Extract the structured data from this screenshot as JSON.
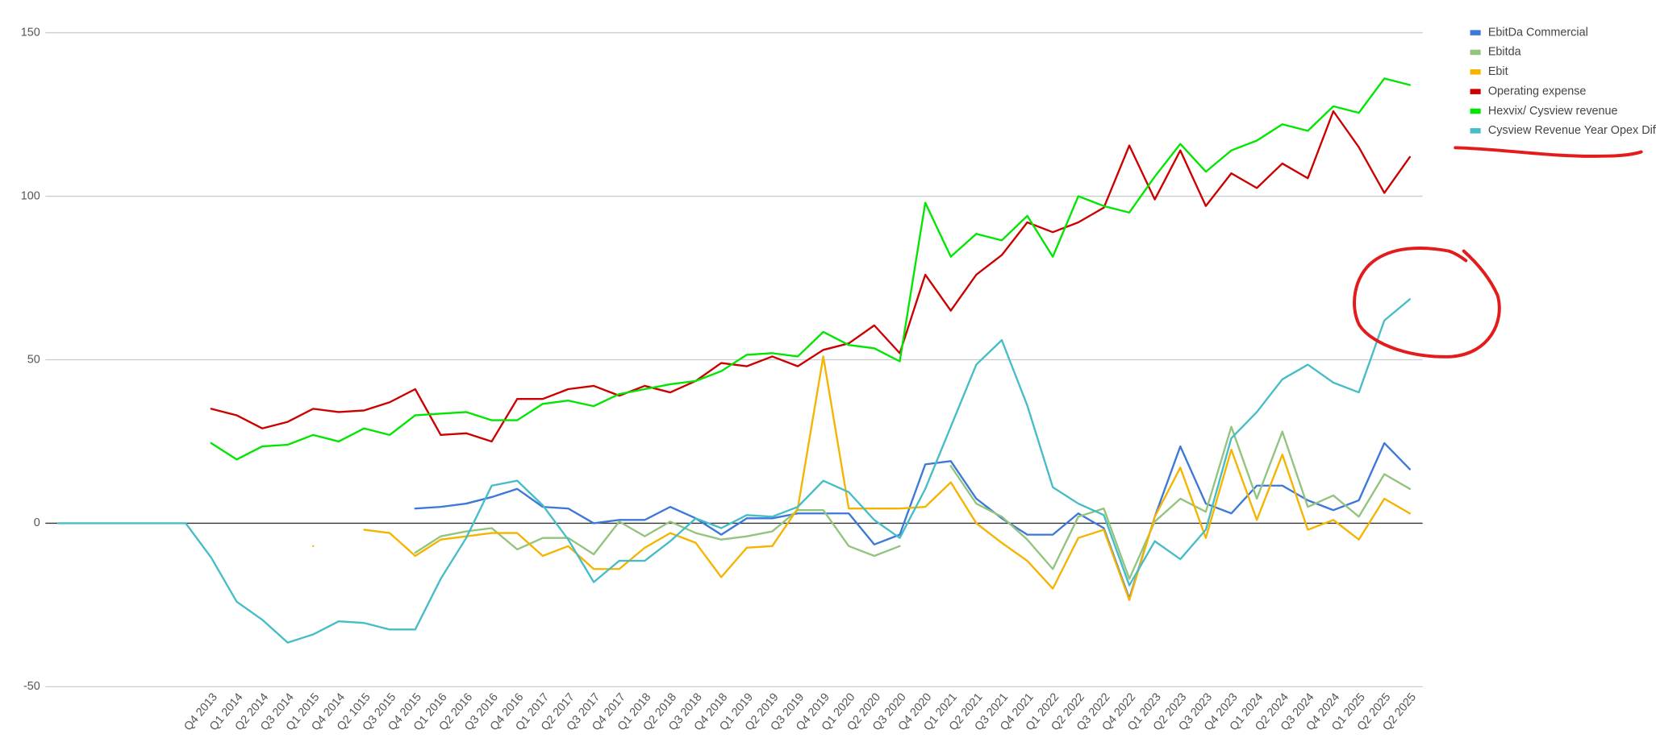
{
  "chart_data": {
    "type": "line",
    "categories": [
      null,
      null,
      null,
      null,
      null,
      null,
      "Q4 2013",
      "Q1 2014",
      "Q2 2014",
      "Q3 2014",
      "Q1 2015",
      "Q4 2014",
      "Q2 1015",
      "Q3 2015",
      "Q4 2015",
      "Q1 2016",
      "Q2 2016",
      "Q3 2016",
      "Q4 2016",
      "Q1 2017",
      "Q2 2017",
      "Q3 2017",
      "Q4 2017",
      "Q1 2018",
      "Q2 2018",
      "Q3 2018",
      "Q4 2018",
      "Q1 2019",
      "Q2 2019",
      "Q3 2019",
      "Q4 2019",
      "Q1 2020",
      "Q2 2020",
      "Q3 2020",
      "Q4 2020",
      "Q1 2021",
      "Q2 2021",
      "Q3 2021",
      "Q4 2021",
      "Q1 2022",
      "Q2 2022",
      "Q3 2022",
      "Q4 2022",
      "Q1 2023",
      "Q2 2023",
      "Q3 2023",
      "Q4 2023",
      "Q1 2024",
      "Q2 2024",
      "Q3 2024",
      "Q4 2024",
      "Q1 2025",
      "Q2 2025",
      "Q2 2025"
    ],
    "series": [
      {
        "name": "EbitDa Commercial",
        "color": "#3c78d8",
        "values": [
          null,
          null,
          null,
          null,
          null,
          null,
          null,
          null,
          null,
          null,
          null,
          null,
          null,
          null,
          4.5,
          5,
          6,
          8,
          10.5,
          5,
          4.5,
          0,
          1,
          1,
          5,
          1.5,
          -3.5,
          1.5,
          1.5,
          3,
          3,
          3,
          -6.5,
          -3.5,
          18,
          19,
          7.5,
          1.5,
          -3.5,
          -3.5,
          3,
          -1.5,
          -23,
          2,
          23.5,
          6,
          3,
          11.5,
          11.5,
          7,
          4,
          7,
          24.5,
          16.5
        ]
      },
      {
        "name": "Ebitda",
        "color": "#93c47d",
        "values": [
          null,
          null,
          null,
          null,
          null,
          null,
          null,
          null,
          null,
          null,
          null,
          null,
          null,
          null,
          -9,
          -4,
          -2.5,
          -1.5,
          -8,
          -4.5,
          -4.5,
          -9.5,
          0.5,
          -4,
          0.5,
          -3,
          -5,
          -4,
          -2.5,
          4,
          4,
          -7,
          -10,
          -7,
          null,
          17.5,
          6,
          2,
          -5,
          -14,
          2,
          4.5,
          -17,
          0.5,
          7.5,
          3.5,
          29.5,
          7.5,
          28,
          5,
          8.5,
          2,
          15,
          10.5
        ]
      },
      {
        "name": "Ebit",
        "color": "#f4b400",
        "values": [
          null,
          null,
          null,
          null,
          null,
          null,
          null,
          null,
          null,
          null,
          -7,
          null,
          -2,
          -3,
          -10,
          -5,
          -4,
          -3,
          -3,
          -10,
          -7,
          -14,
          -14,
          -7.5,
          -3,
          -6,
          -16.5,
          -7.5,
          -7,
          4.5,
          51,
          4.5,
          4.5,
          4.5,
          5,
          12.5,
          0,
          -6,
          -11.5,
          -20,
          -4.5,
          -2,
          -23.5,
          2,
          17,
          -4.5,
          22.5,
          1,
          21,
          -2,
          1,
          -5,
          7.5,
          3
        ]
      },
      {
        "name": "Operating expense",
        "color": "#cc0000",
        "values": [
          null,
          null,
          null,
          null,
          null,
          null,
          35,
          33,
          29,
          31,
          35,
          34,
          34.5,
          37,
          41,
          27,
          27.5,
          25,
          38,
          38,
          41,
          42,
          39,
          42,
          40,
          43.5,
          49,
          48,
          51,
          48,
          53,
          55,
          60.5,
          52,
          76,
          65,
          76,
          82,
          92,
          89,
          92,
          96.5,
          115.5,
          99,
          114,
          97,
          107,
          102.5,
          110,
          105.5,
          126,
          115,
          101,
          112
        ]
      },
      {
        "name": "Hexvix/ Cysview revenue",
        "color": "#00e600",
        "values": [
          null,
          null,
          null,
          null,
          null,
          null,
          24.5,
          19.5,
          23.5,
          24,
          27,
          25,
          29,
          27,
          33,
          33.5,
          34,
          31.5,
          31.5,
          36.5,
          37.5,
          35.8,
          39.5,
          41,
          42.5,
          43.5,
          46.5,
          51.5,
          52,
          51,
          58.5,
          54.5,
          53.5,
          49.5,
          98,
          81.5,
          88.5,
          86.5,
          94,
          81.5,
          100,
          97,
          95,
          106,
          116,
          107.5,
          114,
          117,
          122,
          120,
          127.5,
          125.5,
          136,
          134
        ]
      },
      {
        "name": "Cysview Revenue Year Opex Diff",
        "color": "#46bdc6",
        "values": [
          0,
          0,
          0,
          0,
          0,
          0,
          -10.5,
          -24,
          -29.5,
          -36.5,
          -34,
          -30,
          -30.5,
          -32.5,
          -32.5,
          -17,
          -4.5,
          11.5,
          13,
          5.5,
          -5,
          -18,
          -11.5,
          -11.5,
          -5.5,
          1.5,
          -1.5,
          2.5,
          2,
          5,
          13,
          9.5,
          1,
          -4.5,
          10.5,
          29.5,
          48.5,
          56,
          36,
          11,
          6,
          2.5,
          -19,
          -5.5,
          -11,
          -2,
          26,
          34,
          44,
          48.5,
          43,
          40,
          62,
          68.5
        ]
      }
    ],
    "ylim": [
      -50,
      150
    ],
    "yticks": [
      -50,
      0,
      50,
      100,
      150
    ],
    "grid": true,
    "legend": "right"
  }
}
